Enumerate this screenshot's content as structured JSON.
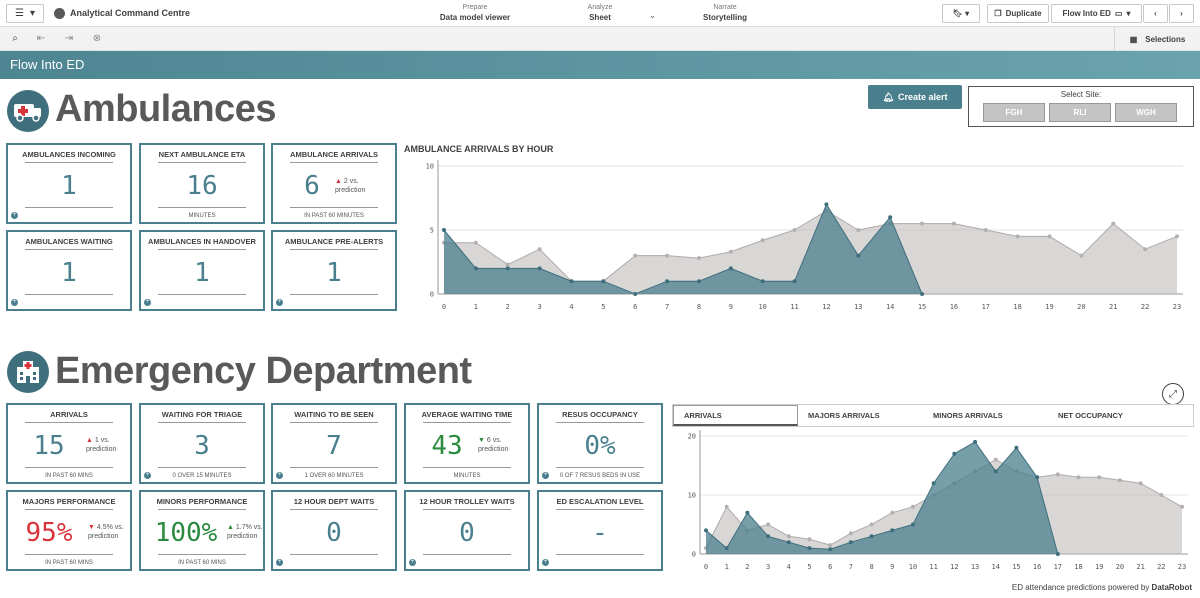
{
  "topbar": {
    "app_title": "Analytical Command Centre",
    "modes": [
      {
        "sub": "Prepare",
        "main": "Data model viewer"
      },
      {
        "sub": "Analyze",
        "main": "Sheet"
      },
      {
        "sub": "Narrate",
        "main": "Storytelling"
      }
    ],
    "duplicate_label": "Duplicate",
    "sheet_label": "Flow Into ED"
  },
  "toolbar": {
    "selections_label": "Selections"
  },
  "sheet": {
    "title": "Flow Into ED"
  },
  "ambulances": {
    "title": "Ambulances",
    "create_alert_label": "Create alert",
    "site_select": {
      "label": "Select Site:",
      "options": [
        "FGH",
        "RLI",
        "WGH"
      ]
    },
    "kpis": [
      {
        "title": "AMBULANCES INCOMING",
        "value": "1",
        "sub": ""
      },
      {
        "title": "NEXT AMBULANCE ETA",
        "value": "16",
        "sub": "MINUTES"
      },
      {
        "title": "AMBULANCE ARRIVALS",
        "value": "6",
        "sub": "IN PAST 60 MINUTES",
        "delta": "2 vs.",
        "delta2": "prediction",
        "trend": "up"
      },
      {
        "title": "AMBULANCES WAITING",
        "value": "1",
        "sub": ""
      },
      {
        "title": "AMBULANCES IN HANDOVER",
        "value": "1",
        "sub": ""
      },
      {
        "title": "AMBULANCE PRE-ALERTS",
        "value": "1",
        "sub": ""
      }
    ]
  },
  "emergency": {
    "title": "Emergency Department",
    "kpis": [
      {
        "title": "ARRIVALS",
        "value": "15",
        "sub": "IN PAST 60 MINS",
        "delta": "1 vs.",
        "delta2": "prediction",
        "trend": "up"
      },
      {
        "title": "WAITING FOR TRIAGE",
        "value": "3",
        "sub": "0 OVER 15 MINUTES"
      },
      {
        "title": "WAITING TO BE SEEN",
        "value": "7",
        "sub": "1 OVER 60 MINUTES"
      },
      {
        "title": "AVERAGE WAITING TIME",
        "value": "43",
        "sub": "MINUTES",
        "delta": "6 vs.",
        "delta2": "prediction",
        "trend": "down"
      },
      {
        "title": "RESUS OCCUPANCY",
        "value": "0%",
        "sub": "0 OF 7 RESUS BEDS IN USE"
      },
      {
        "title": "MAJORS PERFORMANCE",
        "value": "95%",
        "sub": "IN PAST 60 MINS",
        "delta": "4.5% vs.",
        "delta2": "prediction",
        "trend": "down"
      },
      {
        "title": "MINORS PERFORMANCE",
        "value": "100%",
        "sub": "IN PAST 60 MINS",
        "delta": "1.7% vs.",
        "delta2": "prediction",
        "trend": "up"
      },
      {
        "title": "12 HOUR DEPT WAITS",
        "value": "0",
        "sub": ""
      },
      {
        "title": "12 HOUR TROLLEY WAITS",
        "value": "0",
        "sub": ""
      },
      {
        "title": "ED ESCALATION LEVEL",
        "value": "-",
        "sub": ""
      }
    ],
    "tabs": [
      "ARRIVALS",
      "MAJORS ARRIVALS",
      "MINORS ARRIVALS",
      "NET OCCUPANCY"
    ]
  },
  "footer": {
    "note_prefix": "ED attendance predictions powered by",
    "note_brand": "DataRobot"
  },
  "colors": {
    "teal": "#4a7f8e",
    "prediction_grey": "#c9c6c6",
    "alert_red": "#d9343a",
    "good_green": "#2b8a3e"
  },
  "chart_data": [
    {
      "type": "area",
      "title": "AMBULANCE ARRIVALS BY HOUR",
      "x": [
        0,
        1,
        2,
        3,
        4,
        5,
        6,
        7,
        8,
        9,
        10,
        11,
        12,
        13,
        14,
        15,
        16,
        17,
        18,
        19,
        20,
        21,
        22,
        23
      ],
      "ylim": [
        0,
        10
      ],
      "yticks": [
        0,
        5,
        10
      ],
      "series": [
        {
          "values": [
            5,
            2,
            2,
            2,
            1,
            1,
            0,
            1,
            1,
            2,
            1,
            1,
            7,
            3,
            6,
            0,
            null,
            null,
            null,
            null,
            null,
            null,
            null,
            null
          ]
        },
        {
          "values": [
            4,
            4,
            2.3,
            3.5,
            1,
            1,
            3,
            3,
            2.8,
            3.3,
            4.2,
            5,
            6.5,
            5,
            5.5,
            5.5,
            5.5,
            5,
            4.5,
            4.5,
            3,
            5.5,
            3.5,
            4.5
          ]
        }
      ]
    },
    {
      "type": "area",
      "x": [
        0,
        1,
        2,
        3,
        4,
        5,
        6,
        7,
        8,
        9,
        10,
        11,
        12,
        13,
        14,
        15,
        16,
        17,
        18,
        19,
        20,
        21,
        22,
        23
      ],
      "ylim": [
        0,
        20
      ],
      "yticks": [
        0,
        10,
        20
      ],
      "series": [
        {
          "values": [
            4,
            1,
            7,
            3,
            2,
            1,
            0.8,
            2,
            3,
            4,
            5,
            12,
            17,
            19,
            14,
            18,
            13,
            0,
            null,
            null,
            null,
            null,
            null,
            null
          ]
        },
        {
          "values": [
            1,
            8,
            4,
            5,
            3,
            2.5,
            1.5,
            3.5,
            5,
            7,
            8,
            10,
            12,
            14,
            16,
            14,
            13,
            13.5,
            13,
            13,
            12.5,
            12,
            10,
            8
          ]
        }
      ]
    }
  ]
}
